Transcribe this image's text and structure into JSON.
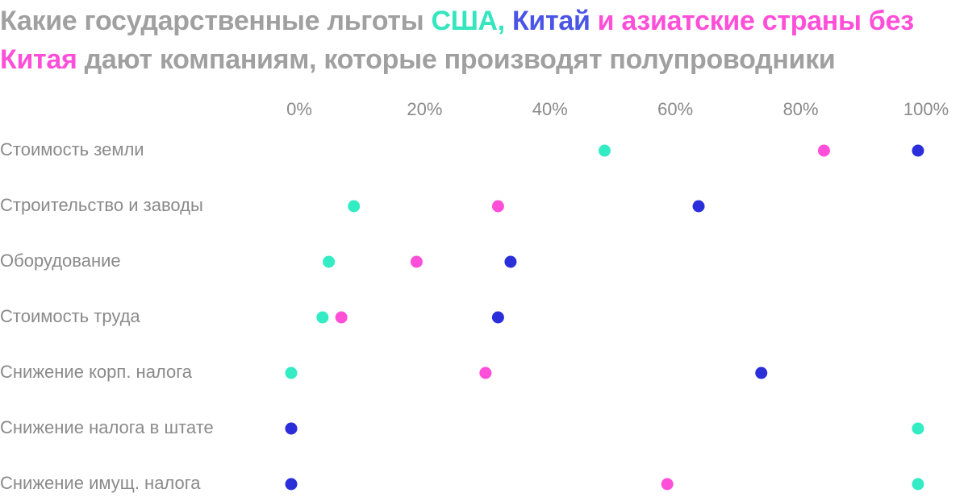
{
  "chart_data": {
    "type": "dot",
    "title": [
      {
        "text": "Какие государственные льготы",
        "color": "#a0a0a0"
      },
      {
        "text": "США,",
        "color": "#33e6bd"
      },
      {
        "text": "Китай",
        "color": "#4a55e6"
      },
      {
        "text": "и азиатские страны без Китая",
        "color": "#ff4fd8"
      },
      {
        "text": "дают компаниям, которые производят полупроводники",
        "color": "#a0a0a0"
      }
    ],
    "categories": [
      "Стоимость земли",
      "Строительство и заводы",
      "Оборудование",
      "Стоимость труда",
      "Снижение корп. налога",
      "Снижение налога в штате",
      "Снижение имущ. налога"
    ],
    "series": [
      {
        "name": "США",
        "color": "#33ecc4",
        "values": [
          50,
          10,
          6,
          5,
          0,
          100,
          100
        ]
      },
      {
        "name": "азиатские страны без Китая",
        "color": "#ff4fd8",
        "values": [
          85,
          33,
          20,
          8,
          31,
          0,
          60
        ]
      },
      {
        "name": "Китай",
        "color": "#2b2fd9",
        "values": [
          100,
          65,
          35,
          33,
          75,
          0,
          0
        ]
      }
    ],
    "xlim": [
      0,
      100
    ],
    "xticks": [
      {
        "value": 0,
        "label": "0%"
      },
      {
        "value": 20,
        "label": "20%"
      },
      {
        "value": 40,
        "label": "40%"
      },
      {
        "value": 60,
        "label": "60%"
      },
      {
        "value": 80,
        "label": "80%"
      },
      {
        "value": 100,
        "label": "100%"
      }
    ]
  }
}
